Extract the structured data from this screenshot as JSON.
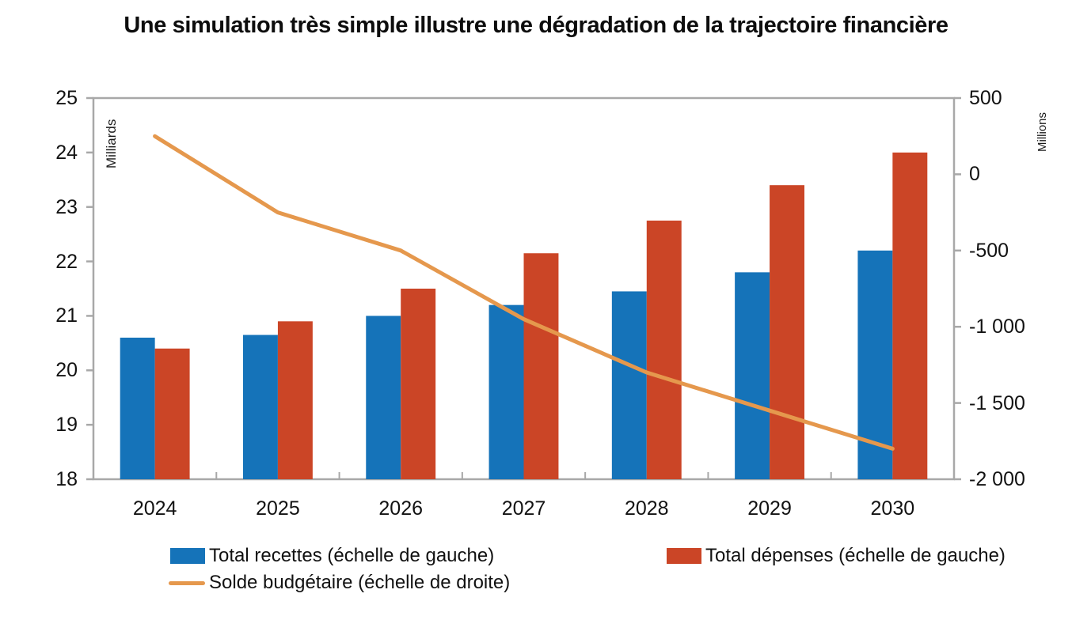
{
  "page": {
    "background": "#ffffff"
  },
  "chart_data": {
    "type": "combo_bar_line",
    "title": "Une simulation très simple illustre une dégradation de la trajectoire financière",
    "categories": [
      "2024",
      "2025",
      "2026",
      "2027",
      "2028",
      "2029",
      "2030"
    ],
    "series": [
      {
        "name": "Total recettes (échelle de gauche)",
        "type": "bar",
        "axis": "left",
        "color": "#1573B9",
        "values": [
          20.6,
          20.65,
          21.0,
          21.2,
          21.45,
          21.8,
          22.2
        ]
      },
      {
        "name": "Total dépenses (échelle de gauche)",
        "type": "bar",
        "axis": "left",
        "color": "#CB4526",
        "values": [
          20.4,
          20.9,
          21.5,
          22.15,
          22.75,
          23.4,
          24.0
        ]
      },
      {
        "name": "Solde budgétaire (échelle de droite)",
        "type": "line",
        "axis": "right",
        "color": "#E5984D",
        "values": [
          250,
          -250,
          -500,
          -950,
          -1300,
          -1550,
          -1800
        ]
      }
    ],
    "left_axis": {
      "label": "Milliards",
      "min": 18,
      "max": 25,
      "ticks": [
        25,
        24,
        23,
        22,
        21,
        20,
        19,
        18
      ]
    },
    "right_axis": {
      "label": "Millions",
      "min": -2000,
      "max": 500,
      "ticks": [
        {
          "value": 500,
          "label": "500"
        },
        {
          "value": 0,
          "label": "0"
        },
        {
          "value": -500,
          "label": "-500"
        },
        {
          "value": -1000,
          "label": "-1 000"
        },
        {
          "value": -1500,
          "label": "-1 500"
        },
        {
          "value": -2000,
          "label": "-2 000"
        }
      ]
    },
    "legend_position": "bottom",
    "grid": false
  },
  "colors": {
    "axis": "#A8A8A8",
    "text": "#121212"
  }
}
